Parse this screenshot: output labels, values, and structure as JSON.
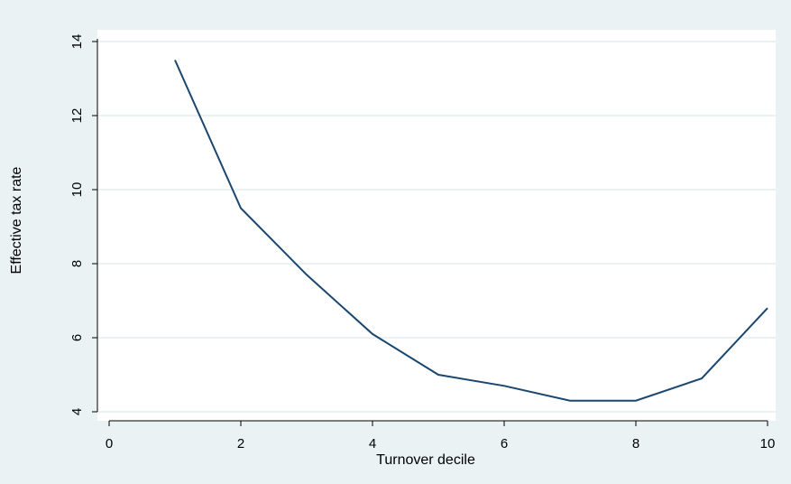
{
  "chart_data": {
    "type": "line",
    "title": "",
    "xlabel": "Turnover decile",
    "ylabel": "Effective tax rate",
    "xlim": [
      0,
      10
    ],
    "ylim": [
      4,
      14
    ],
    "x_ticks": [
      0,
      2,
      4,
      6,
      8,
      10
    ],
    "y_ticks": [
      4,
      6,
      8,
      10,
      12,
      14
    ],
    "grid": "horizontal",
    "legend": "none",
    "series": [
      {
        "x": [
          1,
          2,
          3,
          4,
          5,
          6,
          7,
          8,
          9,
          10
        ],
        "values": [
          13.5,
          9.5,
          7.7,
          6.1,
          5.0,
          4.7,
          4.3,
          4.3,
          4.9,
          6.8
        ],
        "color": "#1a476f"
      }
    ],
    "colors": {
      "background": "#eaf2f3",
      "plot_background": "#ffffff",
      "gridline": "#eaf2f3",
      "line": "#1a476f"
    }
  }
}
